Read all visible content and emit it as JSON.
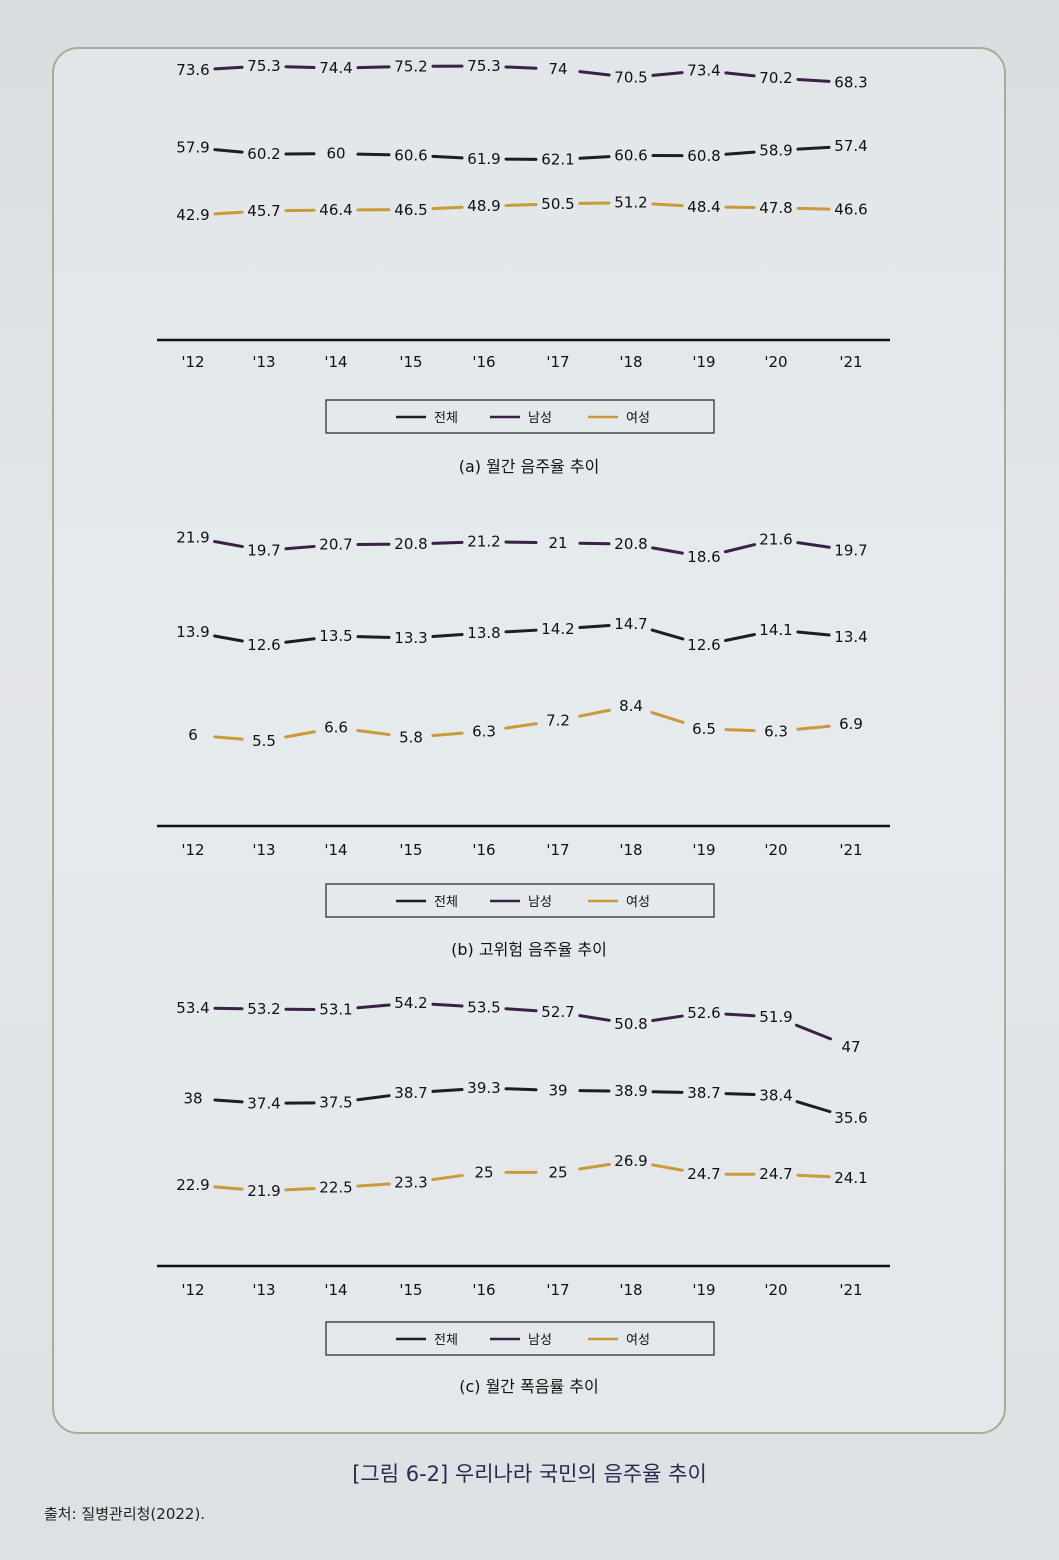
{
  "figure_caption": "[그림 6-2] 우리나라 국민의 음주율 추이",
  "source": "출처: 질병관리청(2022).",
  "colors": {
    "total": "#1e1e1e",
    "male": "#3a2246",
    "female": "#c99a3a",
    "frame": "#a8ad96"
  },
  "chart_data": [
    {
      "type": "line",
      "title": "(a) 월간 음주율 추이",
      "categories": [
        "'12",
        "'13",
        "'14",
        "'15",
        "'16",
        "'17",
        "'18",
        "'19",
        "'20",
        "'21"
      ],
      "legend": [
        "전체",
        "남성",
        "여성"
      ],
      "series": [
        {
          "name": "남성",
          "key": "male",
          "values": [
            73.6,
            75.3,
            74.4,
            75.2,
            75.3,
            74,
            70.5,
            73.4,
            70.2,
            68.3
          ]
        },
        {
          "name": "전체",
          "key": "total",
          "values": [
            57.9,
            60.2,
            60,
            60.6,
            61.9,
            62.1,
            60.6,
            60.8,
            58.9,
            57.4
          ]
        },
        {
          "name": "여성",
          "key": "female",
          "values": [
            42.9,
            45.7,
            46.4,
            46.5,
            48.9,
            50.5,
            51.2,
            48.4,
            47.8,
            46.6
          ]
        }
      ],
      "legend_placement": "bottom"
    },
    {
      "type": "line",
      "title": "(b) 고위험 음주율 추이",
      "categories": [
        "'12",
        "'13",
        "'14",
        "'15",
        "'16",
        "'17",
        "'18",
        "'19",
        "'20",
        "'21"
      ],
      "legend": [
        "전체",
        "남성",
        "여성"
      ],
      "series": [
        {
          "name": "남성",
          "key": "male",
          "values": [
            21.9,
            19.7,
            20.7,
            20.8,
            21.2,
            21,
            20.8,
            18.6,
            21.6,
            19.7
          ]
        },
        {
          "name": "전체",
          "key": "total",
          "values": [
            13.9,
            12.6,
            13.5,
            13.3,
            13.8,
            14.2,
            14.7,
            12.6,
            14.1,
            13.4
          ]
        },
        {
          "name": "여성",
          "key": "female",
          "values": [
            6,
            5.5,
            6.6,
            5.8,
            6.3,
            7.2,
            8.4,
            6.5,
            6.3,
            6.9
          ]
        }
      ],
      "legend_placement": "bottom"
    },
    {
      "type": "line",
      "title": "(c) 월간 폭음률 추이",
      "categories": [
        "'12",
        "'13",
        "'14",
        "'15",
        "'16",
        "'17",
        "'18",
        "'19",
        "'20",
        "'21"
      ],
      "legend": [
        "전체",
        "남성",
        "여성"
      ],
      "series": [
        {
          "name": "남성",
          "key": "male",
          "values": [
            53.4,
            53.2,
            53.1,
            54.2,
            53.5,
            52.7,
            50.8,
            52.6,
            51.9,
            47
          ]
        },
        {
          "name": "전체",
          "key": "total",
          "values": [
            38,
            37.4,
            37.5,
            38.7,
            39.3,
            39,
            38.9,
            38.7,
            38.4,
            35.6
          ]
        },
        {
          "name": "여성",
          "key": "female",
          "values": [
            22.9,
            21.9,
            22.5,
            23.3,
            25,
            25,
            26.9,
            24.7,
            24.7,
            24.1
          ]
        }
      ],
      "legend_placement": "bottom"
    }
  ]
}
